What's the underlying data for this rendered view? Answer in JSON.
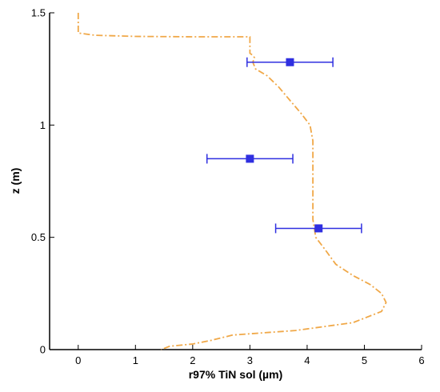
{
  "chart_data": {
    "type": "line",
    "title": "",
    "xlabel": "r97% TiN sol (µm)",
    "ylabel": "z (m)",
    "xlim": [
      -0.5,
      6
    ],
    "ylim": [
      0,
      1.5
    ],
    "x_ticks": [
      0,
      1,
      2,
      3,
      4,
      5,
      6
    ],
    "y_ticks": [
      0,
      0.5,
      1,
      1.5
    ],
    "x_tick_labels": [
      "0",
      "1",
      "2",
      "3",
      "4",
      "5",
      "6"
    ],
    "y_tick_labels": [
      "0",
      "0.5",
      "1",
      "1.5"
    ],
    "grid": false,
    "legend": "none",
    "series": [
      {
        "kind": "line",
        "style": "dash-dot",
        "color": "#F0A848",
        "points": [
          [
            0.0,
            1.5
          ],
          [
            0.0,
            1.41
          ],
          [
            0.3,
            1.4
          ],
          [
            1.0,
            1.395
          ],
          [
            2.0,
            1.393
          ],
          [
            3.0,
            1.393
          ],
          [
            3.0,
            1.32
          ],
          [
            3.05,
            1.31
          ],
          [
            3.08,
            1.3
          ],
          [
            3.05,
            1.28
          ],
          [
            3.1,
            1.25
          ],
          [
            3.3,
            1.22
          ],
          [
            3.5,
            1.17
          ],
          [
            3.7,
            1.11
          ],
          [
            3.9,
            1.05
          ],
          [
            4.05,
            1.0
          ],
          [
            4.1,
            0.93
          ],
          [
            4.1,
            0.8
          ],
          [
            4.1,
            0.65
          ],
          [
            4.1,
            0.58
          ],
          [
            4.15,
            0.5
          ],
          [
            4.3,
            0.45
          ],
          [
            4.5,
            0.38
          ],
          [
            4.8,
            0.33
          ],
          [
            5.1,
            0.29
          ],
          [
            5.3,
            0.25
          ],
          [
            5.38,
            0.21
          ],
          [
            5.3,
            0.17
          ],
          [
            4.8,
            0.12
          ],
          [
            3.8,
            0.085
          ],
          [
            2.7,
            0.065
          ],
          [
            2.3,
            0.04
          ],
          [
            2.0,
            0.025
          ],
          [
            1.6,
            0.015
          ],
          [
            1.5,
            0.005
          ],
          [
            1.45,
            0.0
          ]
        ]
      },
      {
        "kind": "errorbar",
        "color": "#2F2FE0",
        "points": [
          {
            "x": 3.7,
            "y": 1.28,
            "xerr": 0.75
          },
          {
            "x": 3.0,
            "y": 0.85,
            "xerr": 0.75
          },
          {
            "x": 4.2,
            "y": 0.54,
            "xerr": 0.75
          }
        ]
      }
    ]
  }
}
